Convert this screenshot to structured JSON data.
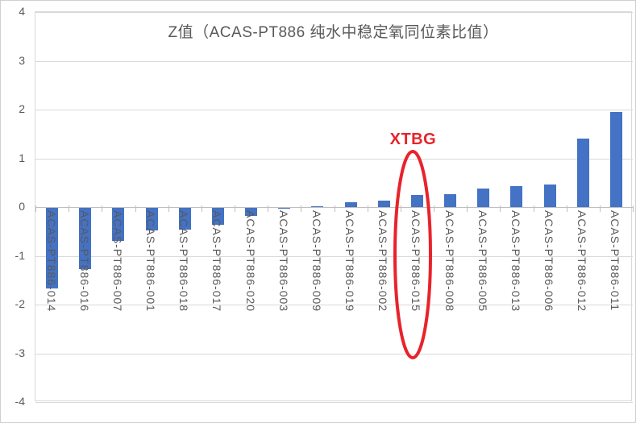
{
  "window": {
    "background": "#FFFFFF",
    "border_color": "#D0CECE"
  },
  "chart_data": {
    "type": "bar",
    "title": "Z值（ACAS-PT886 纯水中稳定氧同位素比值）",
    "categories": [
      "ACAS-PT886-014",
      "ACAS-PT886-016",
      "ACAS-PT886-007",
      "ACAS-PT886-001",
      "ACAS-PT886-018",
      "ACAS-PT886-017",
      "ACAS-PT886-020",
      "ACAS-PT886-003",
      "ACAS-PT886-009",
      "ACAS-PT886-019",
      "ACAS-PT886-002",
      "ACAS-PT886-015",
      "ACAS-PT886-008",
      "ACAS-PT886-005",
      "ACAS-PT886-013",
      "ACAS-PT886-006",
      "ACAS-PT886-012",
      "ACAS-PT886-011"
    ],
    "values": [
      -1.65,
      -1.25,
      -0.67,
      -0.46,
      -0.45,
      -0.34,
      -0.17,
      -0.01,
      0.01,
      0.1,
      0.14,
      0.25,
      0.26,
      0.38,
      0.43,
      0.47,
      1.4,
      1.95
    ],
    "xlabel": "",
    "ylabel": "",
    "ylim": [
      -4,
      4
    ],
    "ytick_labels": [
      "4",
      "3",
      "2",
      "1",
      "0",
      "-1",
      "-2",
      "-3",
      "-4"
    ],
    "grid": true,
    "legend": "none",
    "colors": {
      "bar": "#4472C4",
      "gridline": "#D9D9D9",
      "axis": "#BFBFBF",
      "tick_text": "#595959",
      "title_text": "#595959"
    },
    "annotation": {
      "label": "XTBG",
      "color": "#E8232B",
      "target_category": "ACAS-PT886-015"
    }
  }
}
